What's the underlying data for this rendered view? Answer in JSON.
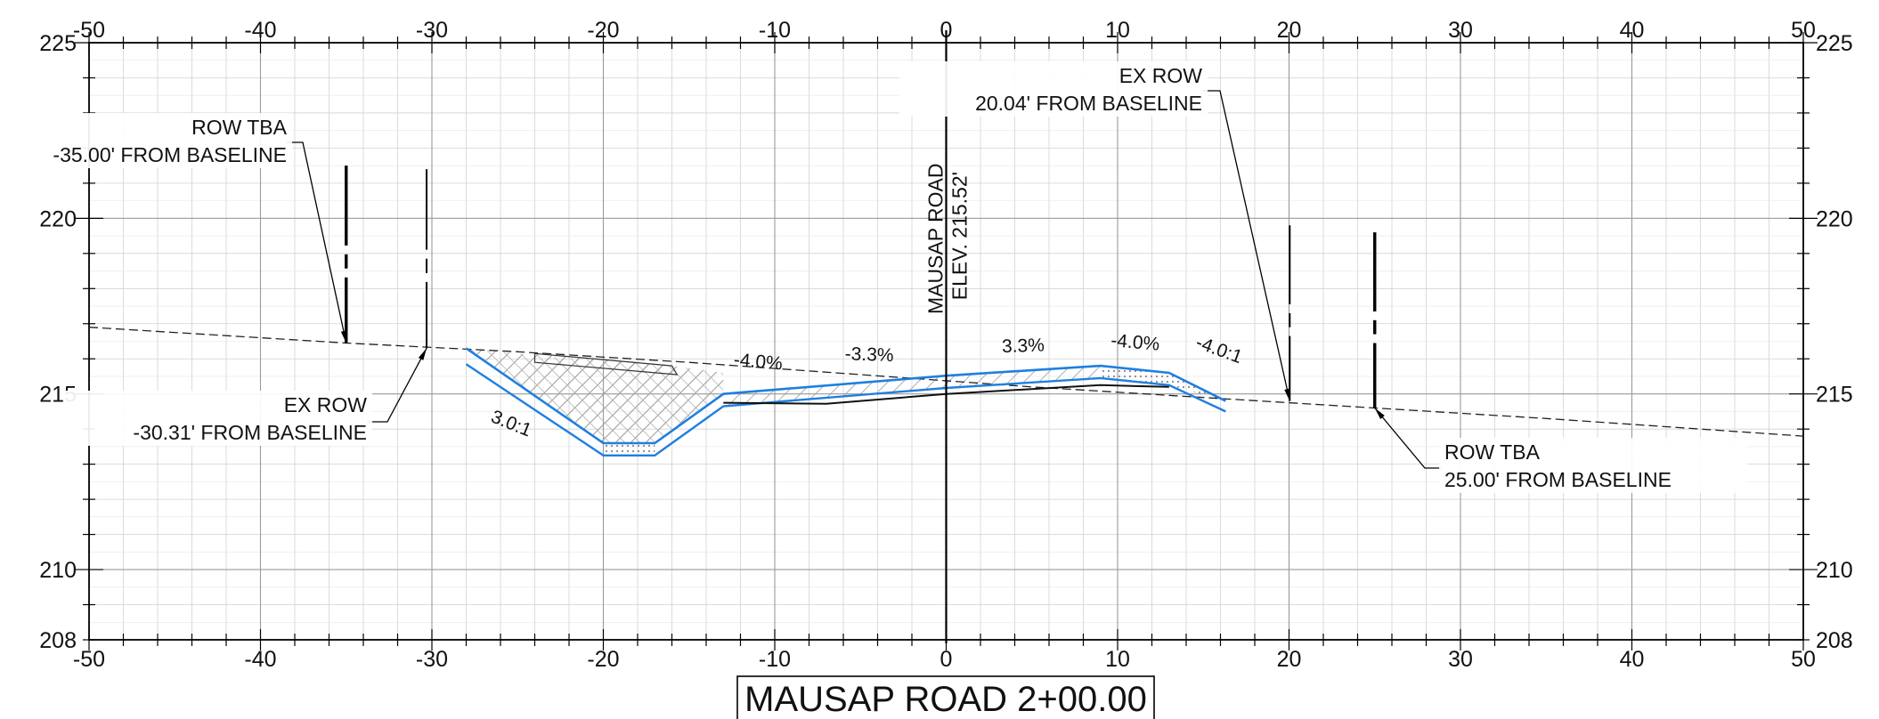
{
  "drawing": {
    "title": "MAUSAP ROAD 2+00.00",
    "colors": {
      "background": "#ffffff",
      "grid_major": "#9a9a9a",
      "grid_minor": "#d2d2d2",
      "frame": "#000000",
      "design_surface": "#1f7fe0",
      "existing_ground": "#222222",
      "hatch": "#9a9a9a"
    }
  },
  "chart_data": {
    "type": "line",
    "x_ticks": [
      "-50",
      "-40",
      "-30",
      "-20",
      "-10",
      "0",
      "10",
      "20",
      "30",
      "40",
      "50"
    ],
    "y_ticks": [
      "225",
      "220",
      "215",
      "210",
      "208"
    ],
    "xlim": [
      -50,
      50
    ],
    "ylim": [
      208,
      225
    ],
    "grid": true,
    "series": [
      {
        "key": "existing",
        "points": [
          [
            -50,
            216.9
          ],
          [
            -35,
            216.45
          ],
          [
            -25,
            216.2
          ],
          [
            -15,
            215.9
          ],
          [
            -5,
            215.55
          ],
          [
            5,
            215.2
          ],
          [
            15,
            214.9
          ],
          [
            25,
            214.6
          ],
          [
            35,
            214.3
          ],
          [
            50,
            213.8
          ]
        ]
      },
      {
        "key": "design",
        "points": [
          [
            -28,
            216.3
          ],
          [
            -20,
            213.6
          ],
          [
            -17,
            213.6
          ],
          [
            -13,
            215.0
          ],
          [
            0,
            215.52
          ],
          [
            9,
            215.8
          ],
          [
            13,
            215.6
          ],
          [
            16.3,
            214.8
          ]
        ]
      }
    ],
    "centerline": {
      "x": 0,
      "label_line1": "MAUSAP ROAD",
      "label_line2": "ELEV. 215.52'"
    },
    "grade_labels": [
      {
        "text": "-4.0%",
        "x": -11,
        "y": 215.75,
        "rotate": 5
      },
      {
        "text": "-3.3%",
        "x": -4.5,
        "y": 215.95,
        "rotate": 2
      },
      {
        "text": "3.3%",
        "x": 4.5,
        "y": 216.2,
        "rotate": -2
      },
      {
        "text": "-4.0%",
        "x": 11,
        "y": 216.3,
        "rotate": 5
      },
      {
        "text": "-4.0:1",
        "x": 15.8,
        "y": 216.1,
        "rotate": 20
      },
      {
        "text": "3.0:1",
        "x": -25.5,
        "y": 214.0,
        "rotate": 22
      }
    ],
    "row_markers": [
      {
        "line1": "ROW TBA",
        "line2": "-35.00'  FROM BASELINE",
        "x": -35.0,
        "ground": 216.45
      },
      {
        "line1": "EX ROW",
        "line2": "-30.31'  FROM BASELINE",
        "x": -30.31,
        "ground": 216.3
      },
      {
        "line1": "EX ROW",
        "line2": "20.04'  FROM BASELINE",
        "x": 20.04,
        "ground": 214.8
      },
      {
        "line1": "ROW TBA",
        "line2": "25.00'  FROM BASELINE",
        "x": 25.0,
        "ground": 214.6
      }
    ]
  }
}
